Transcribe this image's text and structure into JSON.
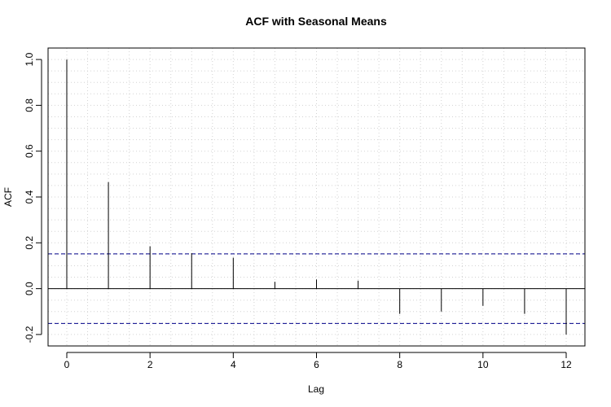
{
  "chart_data": {
    "type": "bar",
    "title": "ACF with Seasonal Means",
    "xlabel": "Lag",
    "ylabel": "ACF",
    "x": [
      0,
      1,
      2,
      3,
      4,
      5,
      6,
      7,
      8,
      9,
      10,
      11,
      12
    ],
    "values": [
      1.0,
      0.465,
      0.185,
      0.155,
      0.135,
      0.03,
      0.04,
      0.035,
      -0.11,
      -0.1,
      -0.075,
      -0.11,
      -0.2
    ],
    "xlim": [
      -0.45,
      12.45
    ],
    "ylim": [
      -0.25,
      1.05
    ],
    "x_ticks": [
      "0",
      "2",
      "4",
      "6",
      "8",
      "10",
      "12"
    ],
    "y_ticks": [
      "-0.2",
      "0.0",
      "0.2",
      "0.4",
      "0.6",
      "0.8",
      "1.0"
    ],
    "confidence_band": [
      -0.152,
      0.152
    ],
    "grid": true,
    "colors": {
      "bars": "#000000",
      "confidence_band": "#00008b",
      "grid": "#d3d3d3",
      "zero_line": "#000000"
    }
  }
}
